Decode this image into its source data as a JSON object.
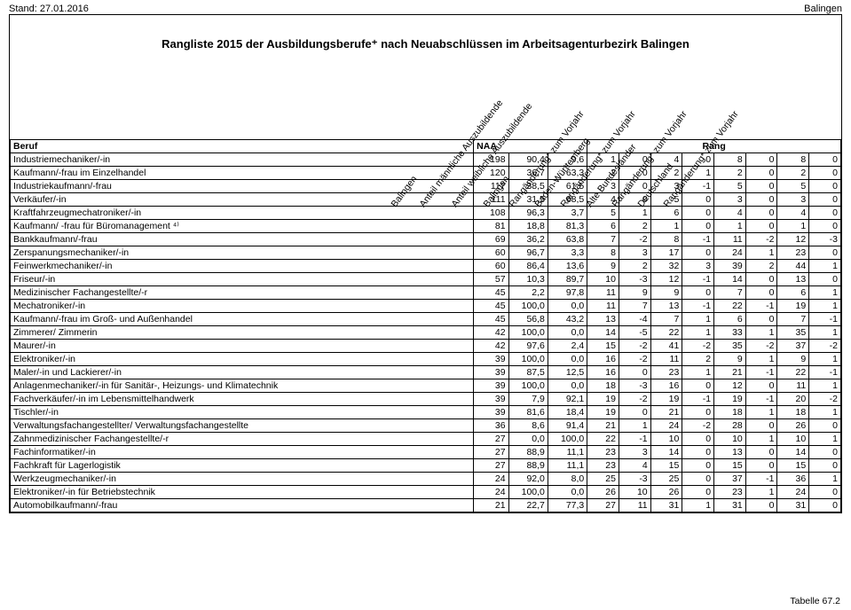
{
  "header": {
    "stand": "Stand: 27.01.2016",
    "ort": "Balingen"
  },
  "title": "Rangliste 2015 der Ausbildungsberufe⁺ nach Neuabschlüssen im Arbeitsagenturbezirk Balingen",
  "column_headers": {
    "beruf": "Beruf",
    "naa_group": "NAA",
    "rang_group": "Rang",
    "diagonals": [
      "Balingen",
      "Anteil männliche Auszubildende",
      "Anteil weibliche Auszubildende",
      "Balingen",
      "Rangänderung* zum Vorjahr",
      "Baden-Württemberg",
      "Rangänderung* zum Vorjahr",
      "Alte Bundesländer",
      "Rangänderung* zum Vorjahr",
      "Deutschland",
      "Rangänderung* zum Vorjahr"
    ]
  },
  "footer": "Tabelle 67.2",
  "columns_meta": {
    "num_widths": [
      32,
      36,
      36,
      29,
      29,
      29,
      29,
      29,
      29,
      29,
      29,
      29
    ],
    "label_width": 424
  },
  "rows": [
    {
      "label": "Industriemechaniker/-in",
      "v": [
        198,
        "90,4",
        "9,6",
        1,
        0,
        4,
        0,
        8,
        0,
        8,
        0
      ]
    },
    {
      "label": "Kaufmann/-frau im Einzelhandel",
      "v": [
        120,
        "36,7",
        "63,3",
        2,
        0,
        2,
        1,
        2,
        0,
        2,
        0
      ]
    },
    {
      "label": "Industriekaufmann/-frau",
      "v": [
        117,
        "38,5",
        "61,5",
        3,
        0,
        3,
        -1,
        5,
        0,
        5,
        0
      ]
    },
    {
      "label": "Verkäufer/-in",
      "v": [
        111,
        "31,5",
        "68,5",
        4,
        0,
        5,
        0,
        3,
        0,
        3,
        0
      ]
    },
    {
      "label": "Kraftfahrzeugmechatroniker/-in",
      "v": [
        108,
        "96,3",
        "3,7",
        5,
        1,
        6,
        0,
        4,
        0,
        4,
        0
      ]
    },
    {
      "label": "Kaufmann/ -frau für Büromanagement ⁴⁾",
      "v": [
        81,
        "18,8",
        "81,3",
        6,
        2,
        1,
        0,
        1,
        0,
        1,
        0
      ]
    },
    {
      "label": "Bankkaufmann/-frau",
      "v": [
        69,
        "36,2",
        "63,8",
        7,
        -2,
        8,
        -1,
        11,
        -2,
        12,
        -3
      ]
    },
    {
      "label": "Zerspanungsmechaniker/-in",
      "v": [
        60,
        "96,7",
        "3,3",
        8,
        3,
        17,
        0,
        24,
        1,
        23,
        0
      ]
    },
    {
      "label": "Feinwerkmechaniker/-in",
      "v": [
        60,
        "86,4",
        "13,6",
        9,
        2,
        32,
        3,
        39,
        2,
        44,
        1
      ]
    },
    {
      "label": "Friseur/-in",
      "v": [
        57,
        "10,3",
        "89,7",
        10,
        -3,
        12,
        -1,
        14,
        0,
        13,
        0
      ]
    },
    {
      "label": "Medizinischer Fachangestellte/-r",
      "v": [
        45,
        "2,2",
        "97,8",
        11,
        9,
        9,
        0,
        7,
        0,
        6,
        1
      ]
    },
    {
      "label": "Mechatroniker/-in",
      "v": [
        45,
        "100,0",
        "0,0",
        11,
        7,
        13,
        -1,
        22,
        -1,
        19,
        1
      ]
    },
    {
      "label": "Kaufmann/-frau im Groß- und Außenhandel",
      "v": [
        45,
        "56,8",
        "43,2",
        13,
        -4,
        7,
        1,
        6,
        0,
        7,
        -1
      ]
    },
    {
      "label": "Zimmerer/ Zimmerin",
      "v": [
        42,
        "100,0",
        "0,0",
        14,
        -5,
        22,
        1,
        33,
        1,
        35,
        1
      ]
    },
    {
      "label": "Maurer/-in",
      "v": [
        42,
        "97,6",
        "2,4",
        15,
        -2,
        41,
        -2,
        35,
        -2,
        37,
        -2
      ]
    },
    {
      "label": "Elektroniker/-in",
      "v": [
        39,
        "100,0",
        "0,0",
        16,
        -2,
        11,
        2,
        9,
        1,
        9,
        1
      ]
    },
    {
      "label": "Maler/-in und Lackierer/-in",
      "v": [
        39,
        "87,5",
        "12,5",
        16,
        0,
        23,
        1,
        21,
        -1,
        22,
        -1
      ]
    },
    {
      "label": "Anlagenmechaniker/-in für Sanitär-, Heizungs- und Klimatechnik",
      "v": [
        39,
        "100,0",
        "0,0",
        18,
        -3,
        16,
        0,
        12,
        0,
        11,
        1
      ]
    },
    {
      "label": "Fachverkäufer/-in im Lebensmittelhandwerk",
      "v": [
        39,
        "7,9",
        "92,1",
        19,
        -2,
        19,
        -1,
        19,
        -1,
        20,
        -2
      ]
    },
    {
      "label": "Tischler/-in",
      "v": [
        39,
        "81,6",
        "18,4",
        19,
        0,
        21,
        0,
        18,
        1,
        18,
        1
      ]
    },
    {
      "label": "Verwaltungsfachangestellter/ Verwaltungsfachangestellte",
      "v": [
        36,
        "8,6",
        "91,4",
        21,
        1,
        24,
        -2,
        28,
        0,
        26,
        0
      ]
    },
    {
      "label": "Zahnmedizinischer Fachangestellte/-r",
      "v": [
        27,
        "0,0",
        "100,0",
        22,
        -1,
        10,
        0,
        10,
        1,
        10,
        1
      ]
    },
    {
      "label": "Fachinformatiker/-in",
      "v": [
        27,
        "88,9",
        "11,1",
        23,
        3,
        14,
        0,
        13,
        0,
        14,
        0
      ]
    },
    {
      "label": "Fachkraft für Lagerlogistik",
      "v": [
        27,
        "88,9",
        "11,1",
        23,
        4,
        15,
        0,
        15,
        0,
        15,
        0
      ]
    },
    {
      "label": "Werkzeugmechaniker/-in",
      "v": [
        24,
        "92,0",
        "8,0",
        25,
        -3,
        25,
        0,
        37,
        -1,
        36,
        1
      ]
    },
    {
      "label": "Elektroniker/-in für Betriebstechnik",
      "v": [
        24,
        "100,0",
        "0,0",
        26,
        10,
        26,
        0,
        23,
        1,
        24,
        0
      ]
    },
    {
      "label": "Automobilkaufmann/-frau",
      "v": [
        21,
        "22,7",
        "77,3",
        27,
        11,
        31,
        1,
        31,
        0,
        31,
        0
      ]
    }
  ],
  "style": {
    "font_family": "Arial",
    "font_size_body": 11,
    "font_size_table": 10.5,
    "font_size_title": 13,
    "border_color": "#000000",
    "background": "#ffffff",
    "diag_angle_deg": -53
  }
}
